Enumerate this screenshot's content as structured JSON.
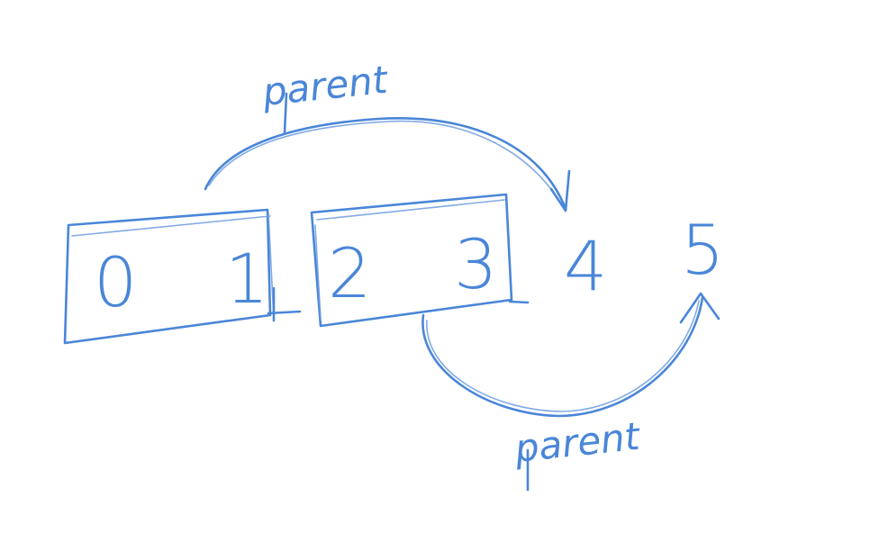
{
  "nodes": [
    "0",
    "1",
    "2",
    "3",
    "4",
    "5"
  ],
  "edge_labels": {
    "top": "parent",
    "bottom": "parent"
  },
  "colors": {
    "ink": "#4a86d8",
    "background": "#ffffff"
  }
}
